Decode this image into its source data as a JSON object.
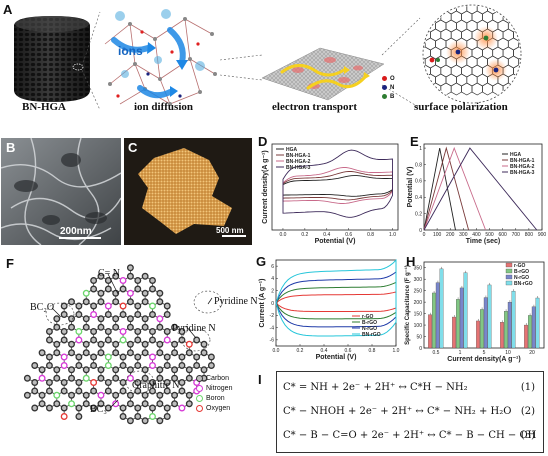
{
  "panels": {
    "A": {
      "label": "A",
      "captions": [
        "BN-HGA",
        "ion diffusion",
        "electron transport",
        "surface polarization"
      ],
      "ions_label": "ions",
      "legend": [
        {
          "letter": "O",
          "color": "#d81b1b"
        },
        {
          "letter": "N",
          "color": "#1a237e"
        },
        {
          "letter": "B",
          "color": "#2e7d32"
        }
      ]
    },
    "B": {
      "label": "B",
      "scalebar": "200nm"
    },
    "C": {
      "label": "C",
      "scalebar": "500 nm"
    },
    "D": {
      "label": "D"
    },
    "E": {
      "label": "E"
    },
    "F": {
      "label": "F",
      "annotations": [
        "C= N",
        "BC₂O",
        "Pyridine N",
        "Pyridine N",
        "Graphitic N",
        "BC₃"
      ],
      "legend": [
        {
          "name": "Carbon",
          "color": "#333333"
        },
        {
          "name": "Nitrogen",
          "color": "#d63ad6"
        },
        {
          "name": "Boron",
          "color": "#6cd66c"
        },
        {
          "name": "Oxygen",
          "color": "#e53935"
        }
      ]
    },
    "G": {
      "label": "G"
    },
    "H": {
      "label": "H"
    },
    "I": {
      "label": "I",
      "equations": [
        {
          "lhs": "C* = NH + 2e⁻ + 2H⁺",
          "arrow": "↔",
          "rhs": "C*H − NH₂",
          "num": "(1)"
        },
        {
          "lhs": "C* − NHOH + 2e⁻ + 2H⁺",
          "arrow": "↔",
          "rhs": "C* − NH₂ + H₂O",
          "num": "(2)"
        },
        {
          "lhs": "C* − B − C=O + 2e⁻ + 2H⁺",
          "arrow": "↔",
          "rhs": "C* − B − CH − OH",
          "num": "(3)"
        }
      ]
    }
  },
  "chart_data": [
    {
      "id": "D",
      "type": "line",
      "xlabel": "Potential (V)",
      "ylabel": "Current density(A g⁻¹)",
      "xticks": [
        0.0,
        0.2,
        0.4,
        0.6,
        0.8,
        1.0
      ],
      "xlim": [
        -0.1,
        1.05
      ],
      "ylim": [
        -1.6,
        1.6
      ],
      "legend_position": "top-left",
      "series": [
        {
          "name": "HGA",
          "color": "#222222",
          "amplitude": 0.4,
          "peak": 0.65
        },
        {
          "name": "BN-HGA-1",
          "color": "#7a3b3b",
          "amplitude": 0.55,
          "peak": 0.6
        },
        {
          "name": "BN-HGA-2",
          "color": "#c86a8a",
          "amplitude": 0.7,
          "peak": 0.55
        },
        {
          "name": "BN-HGA-3",
          "color": "#3d2a5a",
          "amplitude": 1.3,
          "peak": 0.62
        }
      ]
    },
    {
      "id": "E",
      "type": "line",
      "xlabel": "Time (sec)",
      "ylabel": "Potential (V)",
      "xticks": [
        0,
        100,
        200,
        300,
        400,
        500,
        600,
        700,
        800,
        900
      ],
      "yticks": [
        0.0,
        0.2,
        0.4,
        0.6,
        0.8,
        1.0
      ],
      "xlim": [
        0,
        900
      ],
      "ylim": [
        0,
        1.05
      ],
      "legend_position": "top-right",
      "series": [
        {
          "name": "HGA",
          "color": "#222222",
          "x": [
            0,
            120,
            240
          ],
          "y": [
            0.0,
            1.0,
            0.0
          ]
        },
        {
          "name": "BN-HGA-1",
          "color": "#7a3b3b",
          "x": [
            0,
            170,
            340
          ],
          "y": [
            0.0,
            1.0,
            0.0
          ]
        },
        {
          "name": "BN-HGA-2",
          "color": "#c86a8a",
          "x": [
            0,
            230,
            470
          ],
          "y": [
            0.0,
            1.0,
            0.0
          ]
        },
        {
          "name": "BN-HGA-3",
          "color": "#3d2a5a",
          "x": [
            0,
            350,
            860
          ],
          "y": [
            0.0,
            1.0,
            0.0
          ]
        }
      ]
    },
    {
      "id": "G",
      "type": "line",
      "xlabel": "Potential (V)",
      "ylabel": "Current (A g⁻¹)",
      "xticks": [
        0.0,
        0.2,
        0.4,
        0.6,
        0.8,
        1.0
      ],
      "yticks": [
        -6,
        -4,
        -2,
        0,
        2,
        4,
        6
      ],
      "xlim": [
        0,
        1.0
      ],
      "ylim": [
        -7,
        7
      ],
      "legend_position": "bottom-right",
      "series": [
        {
          "name": "r-GO",
          "color": "#e53935",
          "amplitude": 1.5
        },
        {
          "name": "B-rGO",
          "color": "#2e7d32",
          "amplitude": 2.8
        },
        {
          "name": "N-rGO",
          "color": "#1e3aa8",
          "amplitude": 4.2
        },
        {
          "name": "BN-rGO",
          "color": "#26c6da",
          "amplitude": 5.8
        }
      ]
    },
    {
      "id": "H",
      "type": "bar",
      "xlabel": "Current density(A g⁻¹)",
      "ylabel": "Specific Capacitance (F g⁻¹)",
      "categories": [
        "0.5",
        "1",
        "5",
        "10",
        "20"
      ],
      "yticks": [
        0,
        50,
        100,
        150,
        200,
        250,
        300,
        350
      ],
      "ylim": [
        0,
        375
      ],
      "legend_position": "top-right",
      "series": [
        {
          "name": "r-GO",
          "color": "#e57373",
          "values": [
            145,
            135,
            118,
            112,
            100
          ]
        },
        {
          "name": "B-rGO",
          "color": "#81c784",
          "values": [
            240,
            212,
            168,
            160,
            142
          ]
        },
        {
          "name": "N-rGO",
          "color": "#7986cb",
          "values": [
            285,
            262,
            220,
            200,
            180
          ]
        },
        {
          "name": "BN-rGO",
          "color": "#80deea",
          "values": [
            345,
            328,
            275,
            248,
            218
          ]
        }
      ]
    }
  ]
}
